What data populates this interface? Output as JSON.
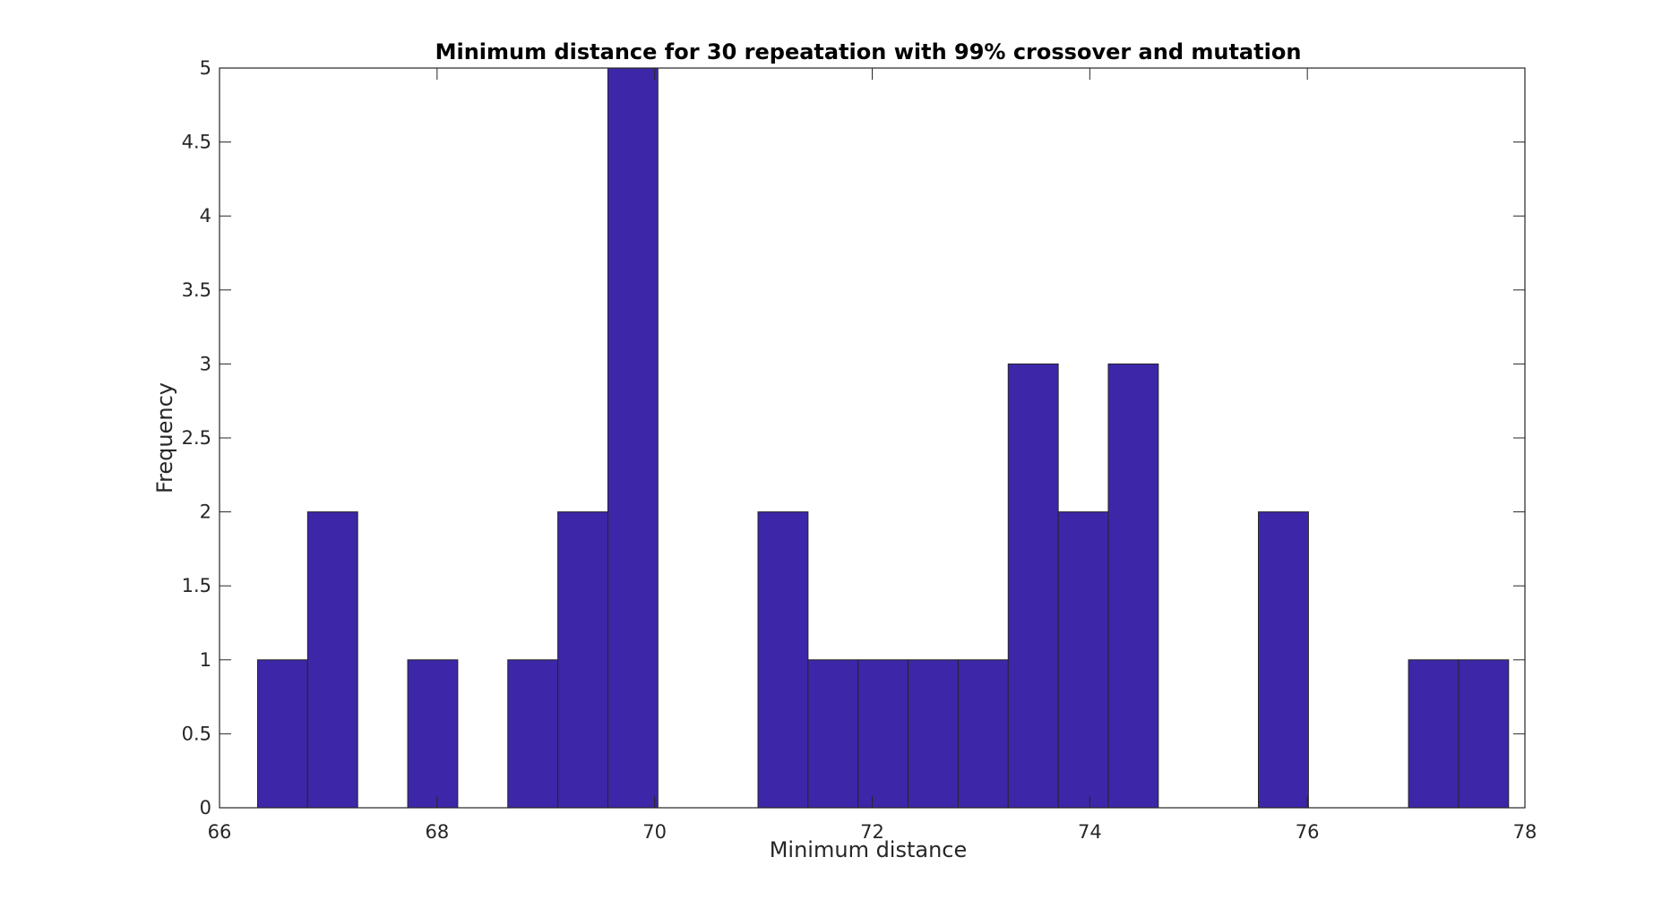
{
  "chart_data": {
    "type": "bar",
    "title": "Minimum distance for 30 repeatation with 99% crossover and mutation",
    "xlabel": "Minimum distance",
    "ylabel": "Frequency",
    "xlim": [
      66,
      78
    ],
    "ylim": [
      0,
      5
    ],
    "x_ticks": [
      "66",
      "68",
      "70",
      "72",
      "74",
      "76",
      "78"
    ],
    "y_ticks": [
      "0",
      "0.5",
      "1",
      "1.5",
      "2",
      "2.5",
      "3",
      "3.5",
      "4",
      "4.5",
      "5"
    ],
    "bin_width": 0.46,
    "bins": [
      {
        "start": 66.35,
        "value": 1
      },
      {
        "start": 66.81,
        "value": 2
      },
      {
        "start": 67.27,
        "value": 0
      },
      {
        "start": 67.73,
        "value": 1
      },
      {
        "start": 68.19,
        "value": 0
      },
      {
        "start": 68.65,
        "value": 1
      },
      {
        "start": 69.11,
        "value": 2
      },
      {
        "start": 69.57,
        "value": 5
      },
      {
        "start": 70.03,
        "value": 0
      },
      {
        "start": 70.49,
        "value": 0
      },
      {
        "start": 70.95,
        "value": 2
      },
      {
        "start": 71.41,
        "value": 1
      },
      {
        "start": 71.87,
        "value": 1
      },
      {
        "start": 72.33,
        "value": 1
      },
      {
        "start": 72.79,
        "value": 1
      },
      {
        "start": 73.25,
        "value": 3
      },
      {
        "start": 73.71,
        "value": 2
      },
      {
        "start": 74.17,
        "value": 3
      },
      {
        "start": 74.63,
        "value": 0
      },
      {
        "start": 75.09,
        "value": 0
      },
      {
        "start": 75.55,
        "value": 2
      },
      {
        "start": 76.01,
        "value": 0
      },
      {
        "start": 76.47,
        "value": 0
      },
      {
        "start": 76.93,
        "value": 1
      },
      {
        "start": 77.39,
        "value": 1
      }
    ],
    "bar_color": "#3d26a8",
    "edge_color": "#262626",
    "grid": false,
    "legend": "none"
  }
}
